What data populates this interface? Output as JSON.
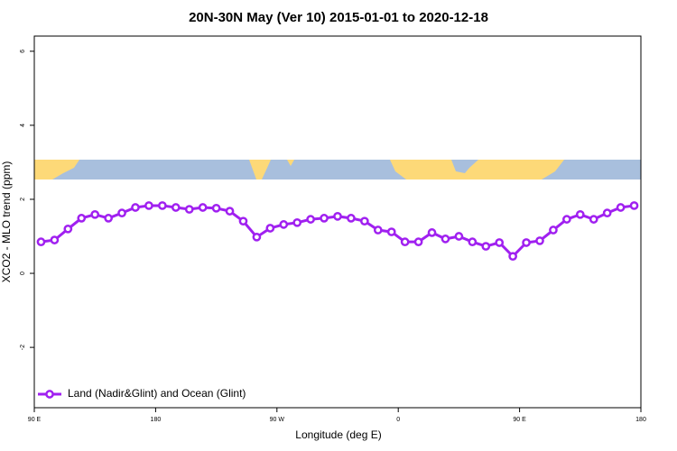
{
  "chart_data": {
    "type": "line",
    "title": "20N-30N May (Ver 10)   2015-01-01 to 2020-12-18",
    "x_label": "Longitude (deg E)",
    "y_label": "XCO2 - MLO trend (ppm)",
    "xlim": [
      90,
      540
    ],
    "xticks": [
      {
        "value": 90,
        "label": "90 E"
      },
      180,
      {
        "value": 270,
        "label": "90 W"
      },
      {
        "value": 360,
        "label": "0"
      },
      {
        "value": 450,
        "label": "90 E"
      },
      {
        "value": 540,
        "label": "180"
      }
    ],
    "ylim": [
      -3.63,
      6.41
    ],
    "yticks": [
      -2,
      0,
      2,
      4,
      6
    ],
    "legend": "bottom-left",
    "x": [
      95,
      105,
      115,
      125,
      135,
      145,
      155,
      165,
      175,
      185,
      195,
      205,
      215,
      225,
      235,
      245,
      255,
      265,
      275,
      285,
      295,
      305,
      315,
      325,
      335,
      345,
      355,
      365,
      375,
      385,
      395,
      405,
      415,
      425,
      435,
      445,
      455,
      465,
      475,
      485,
      495,
      505,
      515,
      525,
      535
    ],
    "series": [
      {
        "name": "Land (Nadir&Glint) and Ocean (Glint)",
        "color": "#a020f0",
        "values": [
          0.85,
          0.9,
          1.2,
          1.49,
          1.59,
          1.49,
          1.63,
          1.78,
          1.83,
          1.83,
          1.78,
          1.73,
          1.78,
          1.76,
          1.68,
          1.41,
          0.98,
          1.22,
          1.32,
          1.37,
          1.46,
          1.49,
          1.54,
          1.49,
          1.41,
          1.17,
          1.12,
          0.85,
          0.85,
          1.1,
          0.93,
          1.0,
          0.85,
          0.73,
          0.83,
          0.46,
          0.83,
          0.88,
          1.17,
          1.46,
          1.59,
          1.46,
          1.63,
          1.78,
          1.83
        ]
      }
    ]
  }
}
